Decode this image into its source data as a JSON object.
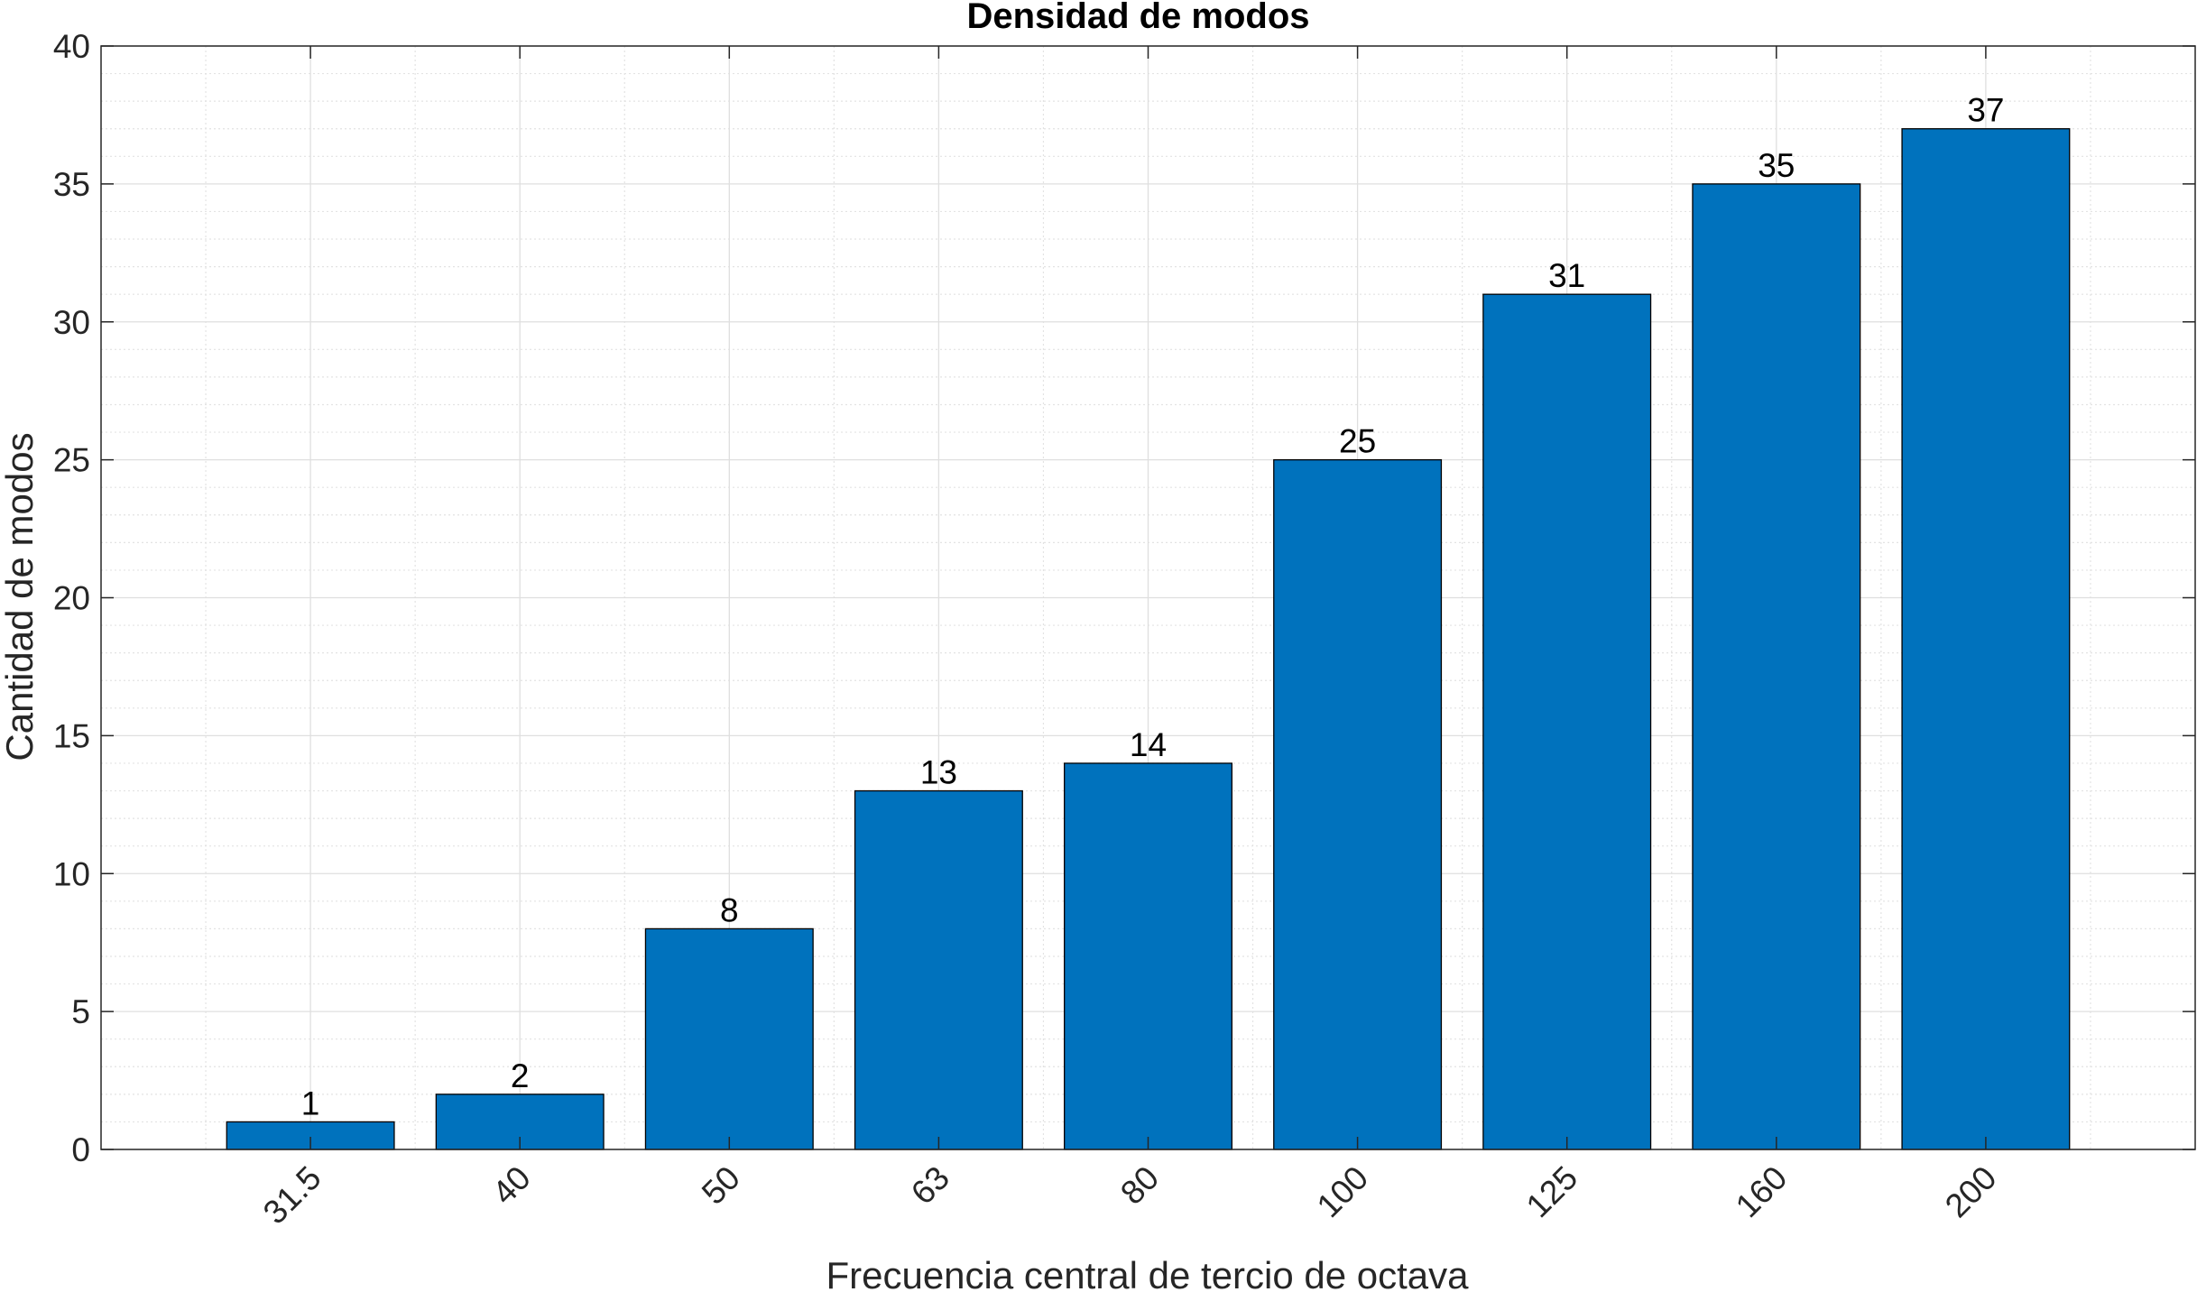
{
  "chart_data": {
    "type": "bar",
    "title": "Densidad de modos",
    "xlabel": "Frecuencia central de tercio de octava",
    "ylabel": "Cantidad de modos",
    "categories": [
      "31.5",
      "40",
      "50",
      "63",
      "80",
      "100",
      "125",
      "160",
      "200"
    ],
    "values": [
      1,
      2,
      8,
      13,
      14,
      25,
      31,
      35,
      37
    ],
    "data_labels": [
      "1",
      "2",
      "8",
      "13",
      "14",
      "25",
      "31",
      "35",
      "37"
    ],
    "ylim": [
      0,
      40
    ],
    "yticks": [
      0,
      5,
      10,
      15,
      20,
      25,
      30,
      35,
      40
    ],
    "yticklabels": [
      "0",
      "5",
      "10",
      "15",
      "20",
      "25",
      "30",
      "35",
      "40"
    ],
    "y_minor_step": 1,
    "x_minor_step": 0.5,
    "grid": true,
    "minor_grid": true,
    "legend": "none",
    "bar_color": "#0072BD",
    "edge_color": "#000000"
  }
}
